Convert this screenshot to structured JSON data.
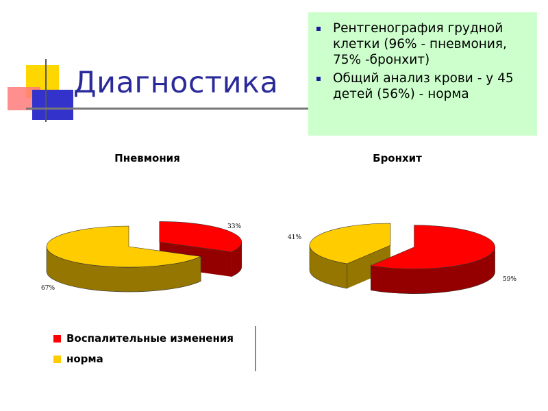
{
  "slide": {
    "title": "Диагностика",
    "bullets": [
      "Рентгенография грудной клетки (96% - пневмония, 75% -бронхит)",
      "Общий анализ крови - у 45 детей (56%) - норма"
    ],
    "colors": {
      "title": "#2a2a9a",
      "box": "#ccffcc",
      "bullet": "#1a1a99",
      "deco_yellow": "#ffd700",
      "deco_red": "#ff6666",
      "deco_blue": "#3333cc"
    }
  },
  "legend": {
    "items": [
      {
        "label": "Воспалительные изменения",
        "color": "#ff0000"
      },
      {
        "label": "норма",
        "color": "#ffcc00"
      }
    ]
  },
  "chart_data": [
    {
      "type": "pie",
      "title": "Пневмония",
      "categories": [
        "Воспалительные изменения",
        "норма"
      ],
      "values": [
        33,
        67
      ],
      "labels": [
        "33%",
        "67%"
      ],
      "colors": [
        "#ff0000",
        "#ffcc00"
      ],
      "style": "3d-exploded"
    },
    {
      "type": "pie",
      "title": "Бронхит",
      "categories": [
        "Воспалительные изменения",
        "норма"
      ],
      "values": [
        59,
        41
      ],
      "labels": [
        "59%",
        "41%"
      ],
      "colors": [
        "#ff0000",
        "#ffcc00"
      ],
      "style": "3d-exploded"
    }
  ]
}
